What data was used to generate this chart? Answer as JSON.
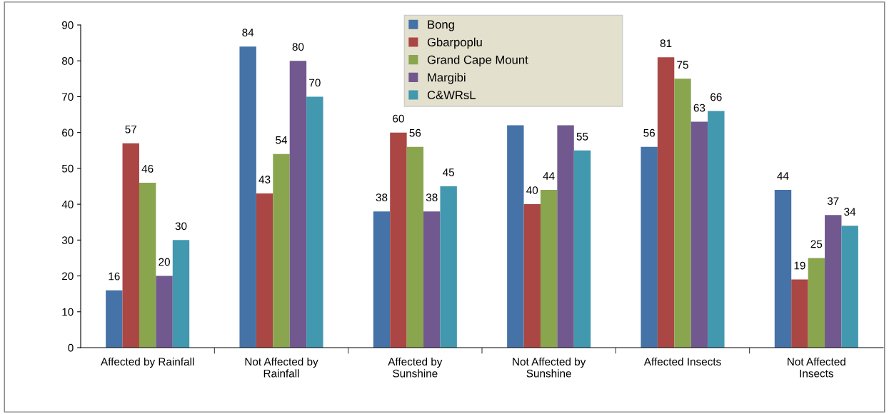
{
  "chart_data": {
    "type": "bar",
    "categories": [
      "Affected by Rainfall",
      "Not Affected by\nRainfall",
      "Affected by\nSunshine",
      "Not Affected by\nSunshine",
      "Affected Insects",
      "Not Affected\nInsects"
    ],
    "series": [
      {
        "name": "Bong",
        "color": "#4572a7",
        "values": [
          16,
          84,
          38,
          62,
          56,
          44
        ],
        "value_labels": [
          "16",
          "84",
          "38",
          null,
          "56",
          "44"
        ]
      },
      {
        "name": "Gbarpoplu",
        "color": "#aa4643",
        "values": [
          57,
          43,
          60,
          40,
          81,
          19
        ],
        "value_labels": [
          "57",
          "43",
          "60",
          "40",
          "81",
          "19"
        ]
      },
      {
        "name": "Grand Cape Mount",
        "color": "#89a54e",
        "values": [
          46,
          54,
          56,
          44,
          75,
          25
        ],
        "value_labels": [
          "46",
          "54",
          "56",
          "44",
          "75",
          "25"
        ]
      },
      {
        "name": "Margibi",
        "color": "#71588f",
        "values": [
          20,
          80,
          38,
          62,
          63,
          37
        ],
        "value_labels": [
          "20",
          "80",
          "38",
          null,
          "63",
          "37"
        ]
      },
      {
        "name": "C&WRsL",
        "color": "#4198af",
        "values": [
          30,
          70,
          45,
          55,
          66,
          34
        ],
        "value_labels": [
          "30",
          "70",
          "45",
          "55",
          "66",
          "34"
        ]
      }
    ],
    "ylim": [
      0,
      90
    ],
    "yticks": [
      0,
      10,
      20,
      30,
      40,
      50,
      60,
      70,
      80,
      90
    ],
    "grid": false,
    "legend": "top"
  }
}
